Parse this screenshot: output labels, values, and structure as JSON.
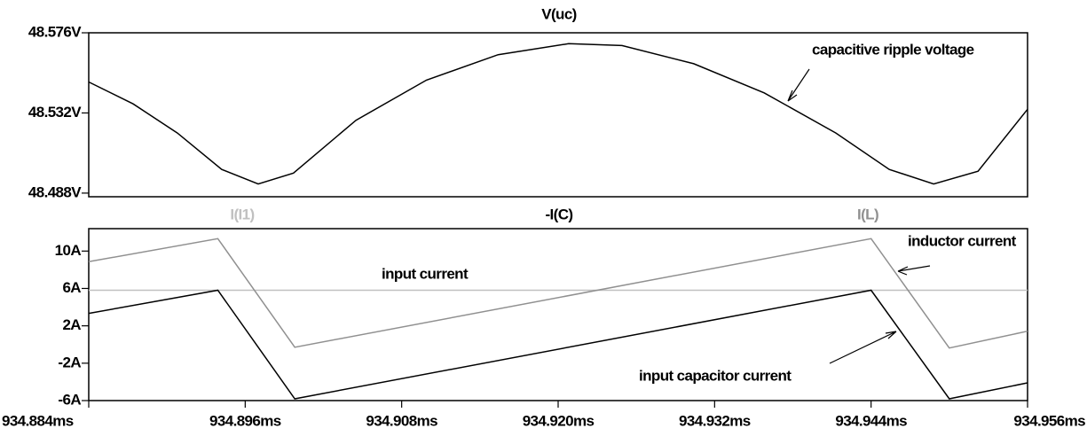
{
  "chart_data": [
    {
      "type": "line",
      "series": [
        {
          "name": "V(uc)",
          "color": "#000000",
          "x": [
            934.884,
            934.8874,
            934.8908,
            934.8942,
            934.897,
            934.8997,
            934.9045,
            934.9099,
            934.9154,
            934.9208,
            934.9249,
            934.9304,
            934.9358,
            934.9413,
            934.9454,
            934.9488,
            934.9522,
            934.956
          ],
          "values": [
            48.549,
            48.537,
            48.521,
            48.501,
            48.493,
            48.499,
            48.528,
            48.55,
            48.564,
            48.57,
            48.569,
            48.559,
            48.543,
            48.521,
            48.501,
            48.493,
            48.5,
            48.534
          ]
        }
      ],
      "xlim": [
        934.884,
        934.956
      ],
      "ylim": [
        48.486,
        48.576
      ],
      "yticks": [
        {
          "value": 48.576,
          "label": "48.576V"
        },
        {
          "value": 48.532,
          "label": "48.532V"
        },
        {
          "value": 48.488,
          "label": "48.488V"
        }
      ],
      "annotations": [
        "capacitive ripple voltage"
      ]
    },
    {
      "type": "line",
      "series": [
        {
          "name": "I(I1)",
          "color": "#c0c0c0",
          "x": [
            934.884,
            934.956
          ],
          "values": [
            5.81,
            5.81
          ]
        },
        {
          "name": "-I(C)",
          "color": "#000000",
          "x": [
            934.884,
            934.8939,
            934.8998,
            934.944,
            934.95,
            934.956
          ],
          "values": [
            3.33,
            5.81,
            -5.81,
            5.81,
            -5.81,
            -4.1
          ]
        },
        {
          "name": "I(L)",
          "color": "#909090",
          "x": [
            934.884,
            934.8939,
            934.8998,
            934.944,
            934.95,
            934.956
          ],
          "values": [
            8.86,
            11.33,
            -0.29,
            11.33,
            -0.38,
            1.43
          ]
        }
      ],
      "xlim": [
        934.884,
        934.956
      ],
      "ylim": [
        -6,
        12.4
      ],
      "xticks": [
        {
          "value": 934.884,
          "label": "934.884ms"
        },
        {
          "value": 934.896,
          "label": "934.896ms"
        },
        {
          "value": 934.908,
          "label": "934.908ms"
        },
        {
          "value": 934.92,
          "label": "934.920ms"
        },
        {
          "value": 934.932,
          "label": "934.932ms"
        },
        {
          "value": 934.944,
          "label": "934.944ms"
        },
        {
          "value": 934.956,
          "label": "934.956ms"
        }
      ],
      "yticks": [
        {
          "value": 10,
          "label": "10A"
        },
        {
          "value": 6,
          "label": "6A"
        },
        {
          "value": 2,
          "label": "2A"
        },
        {
          "value": -2,
          "label": "-2A"
        },
        {
          "value": -6,
          "label": "-6A"
        }
      ],
      "annotations": [
        "inductor current",
        "input current",
        "input capacitor current"
      ]
    }
  ]
}
